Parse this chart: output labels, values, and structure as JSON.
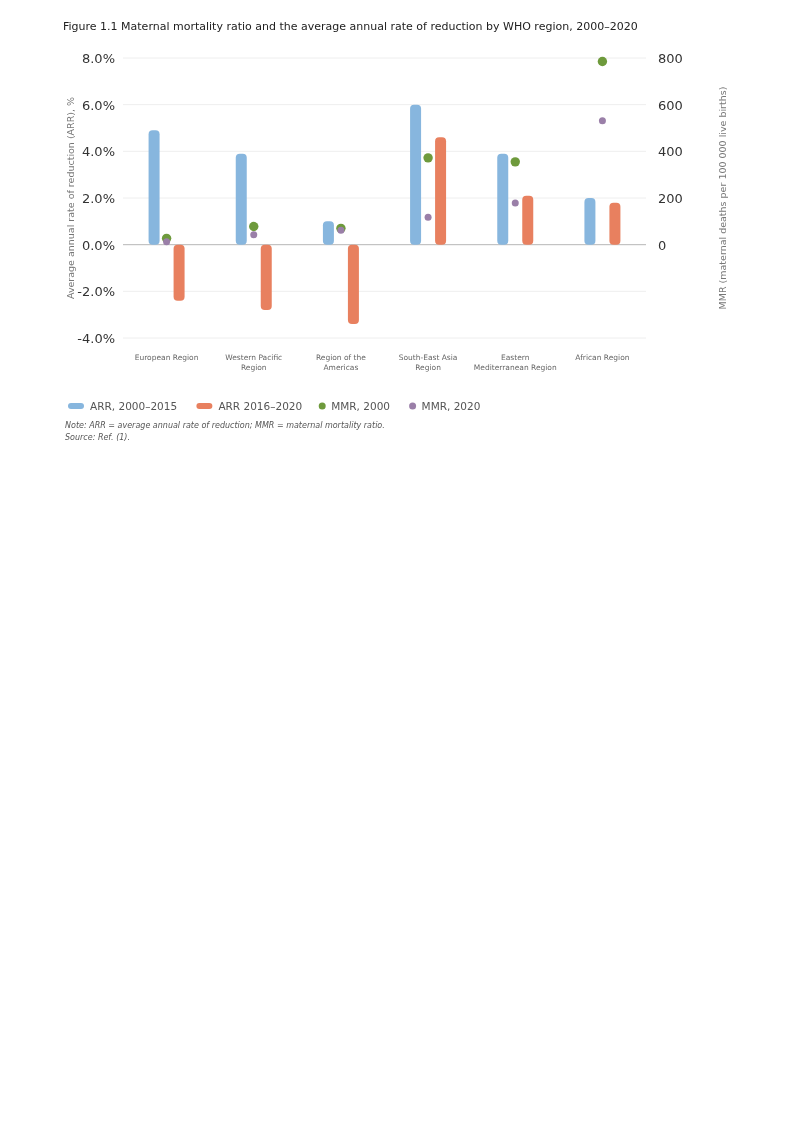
{
  "chart_data": {
    "type": "bar",
    "title": "Figure 1.1 Maternal mortality ratio and the average annual rate of reduction by WHO region, 2000–2020",
    "ylabel": "Average annual rate of reduction (ARR), %",
    "y2label": "MMR (maternal deaths per 100 000 live births)",
    "categories": [
      "European Region",
      "Western Pacific Region",
      "Region of the Americas",
      "South-East Asia Region",
      "Eastern Mediterranean Region",
      "African Region"
    ],
    "series": [
      {
        "name": "ARR, 2000–2015",
        "color": "#87b6de",
        "values": [
          4.9,
          3.9,
          1.0,
          6.0,
          3.9,
          2.0
        ]
      },
      {
        "name": "ARR 2016–2020",
        "color": "#e8805f",
        "values": [
          -2.4,
          -2.8,
          -3.4,
          4.6,
          2.1,
          1.8
        ]
      },
      {
        "name": "MMR, 2000",
        "type": "scatter",
        "axis": "y2",
        "color": "#6e9a3c",
        "x": [
          "European Region",
          "Western Pacific Region",
          "Region of the Americas",
          "South-East Asia Region",
          "Eastern Mediterranean Region",
          "African Region"
        ],
        "values": [
          27,
          78,
          70,
          372,
          355,
          785
        ]
      },
      {
        "name": "MMR, 2020",
        "type": "scatter",
        "axis": "y2",
        "color": "#9a7fa8",
        "x": [
          "European Region",
          "Western Pacific Region",
          "Region of the Americas",
          "South-East Asia Region",
          "Eastern Mediterranean Region",
          "African Region"
        ],
        "values": [
          13,
          43,
          62,
          117,
          179,
          531
        ]
      }
    ],
    "ylim": [
      -4,
      8
    ],
    "yticks": [
      {
        "value": -4,
        "label": "-4.0%"
      },
      {
        "value": -2,
        "label": "-2.0%"
      },
      {
        "value": 0,
        "label": "0.0%"
      },
      {
        "value": 2,
        "label": "2.0%"
      },
      {
        "value": 4,
        "label": "4.0%"
      },
      {
        "value": 6,
        "label": "6.0%"
      },
      {
        "value": 8,
        "label": "8.0%"
      }
    ],
    "y2lim": [
      -400,
      800
    ],
    "y2ticks": [
      0,
      200,
      400,
      600,
      800
    ],
    "grid": "y",
    "legend": "bottom",
    "marker": "circle",
    "annotations": [
      "Note: ARR = average annual rate of reduction; MMR = maternal mortality ratio.",
      "Source: Ref. (1)."
    ]
  }
}
